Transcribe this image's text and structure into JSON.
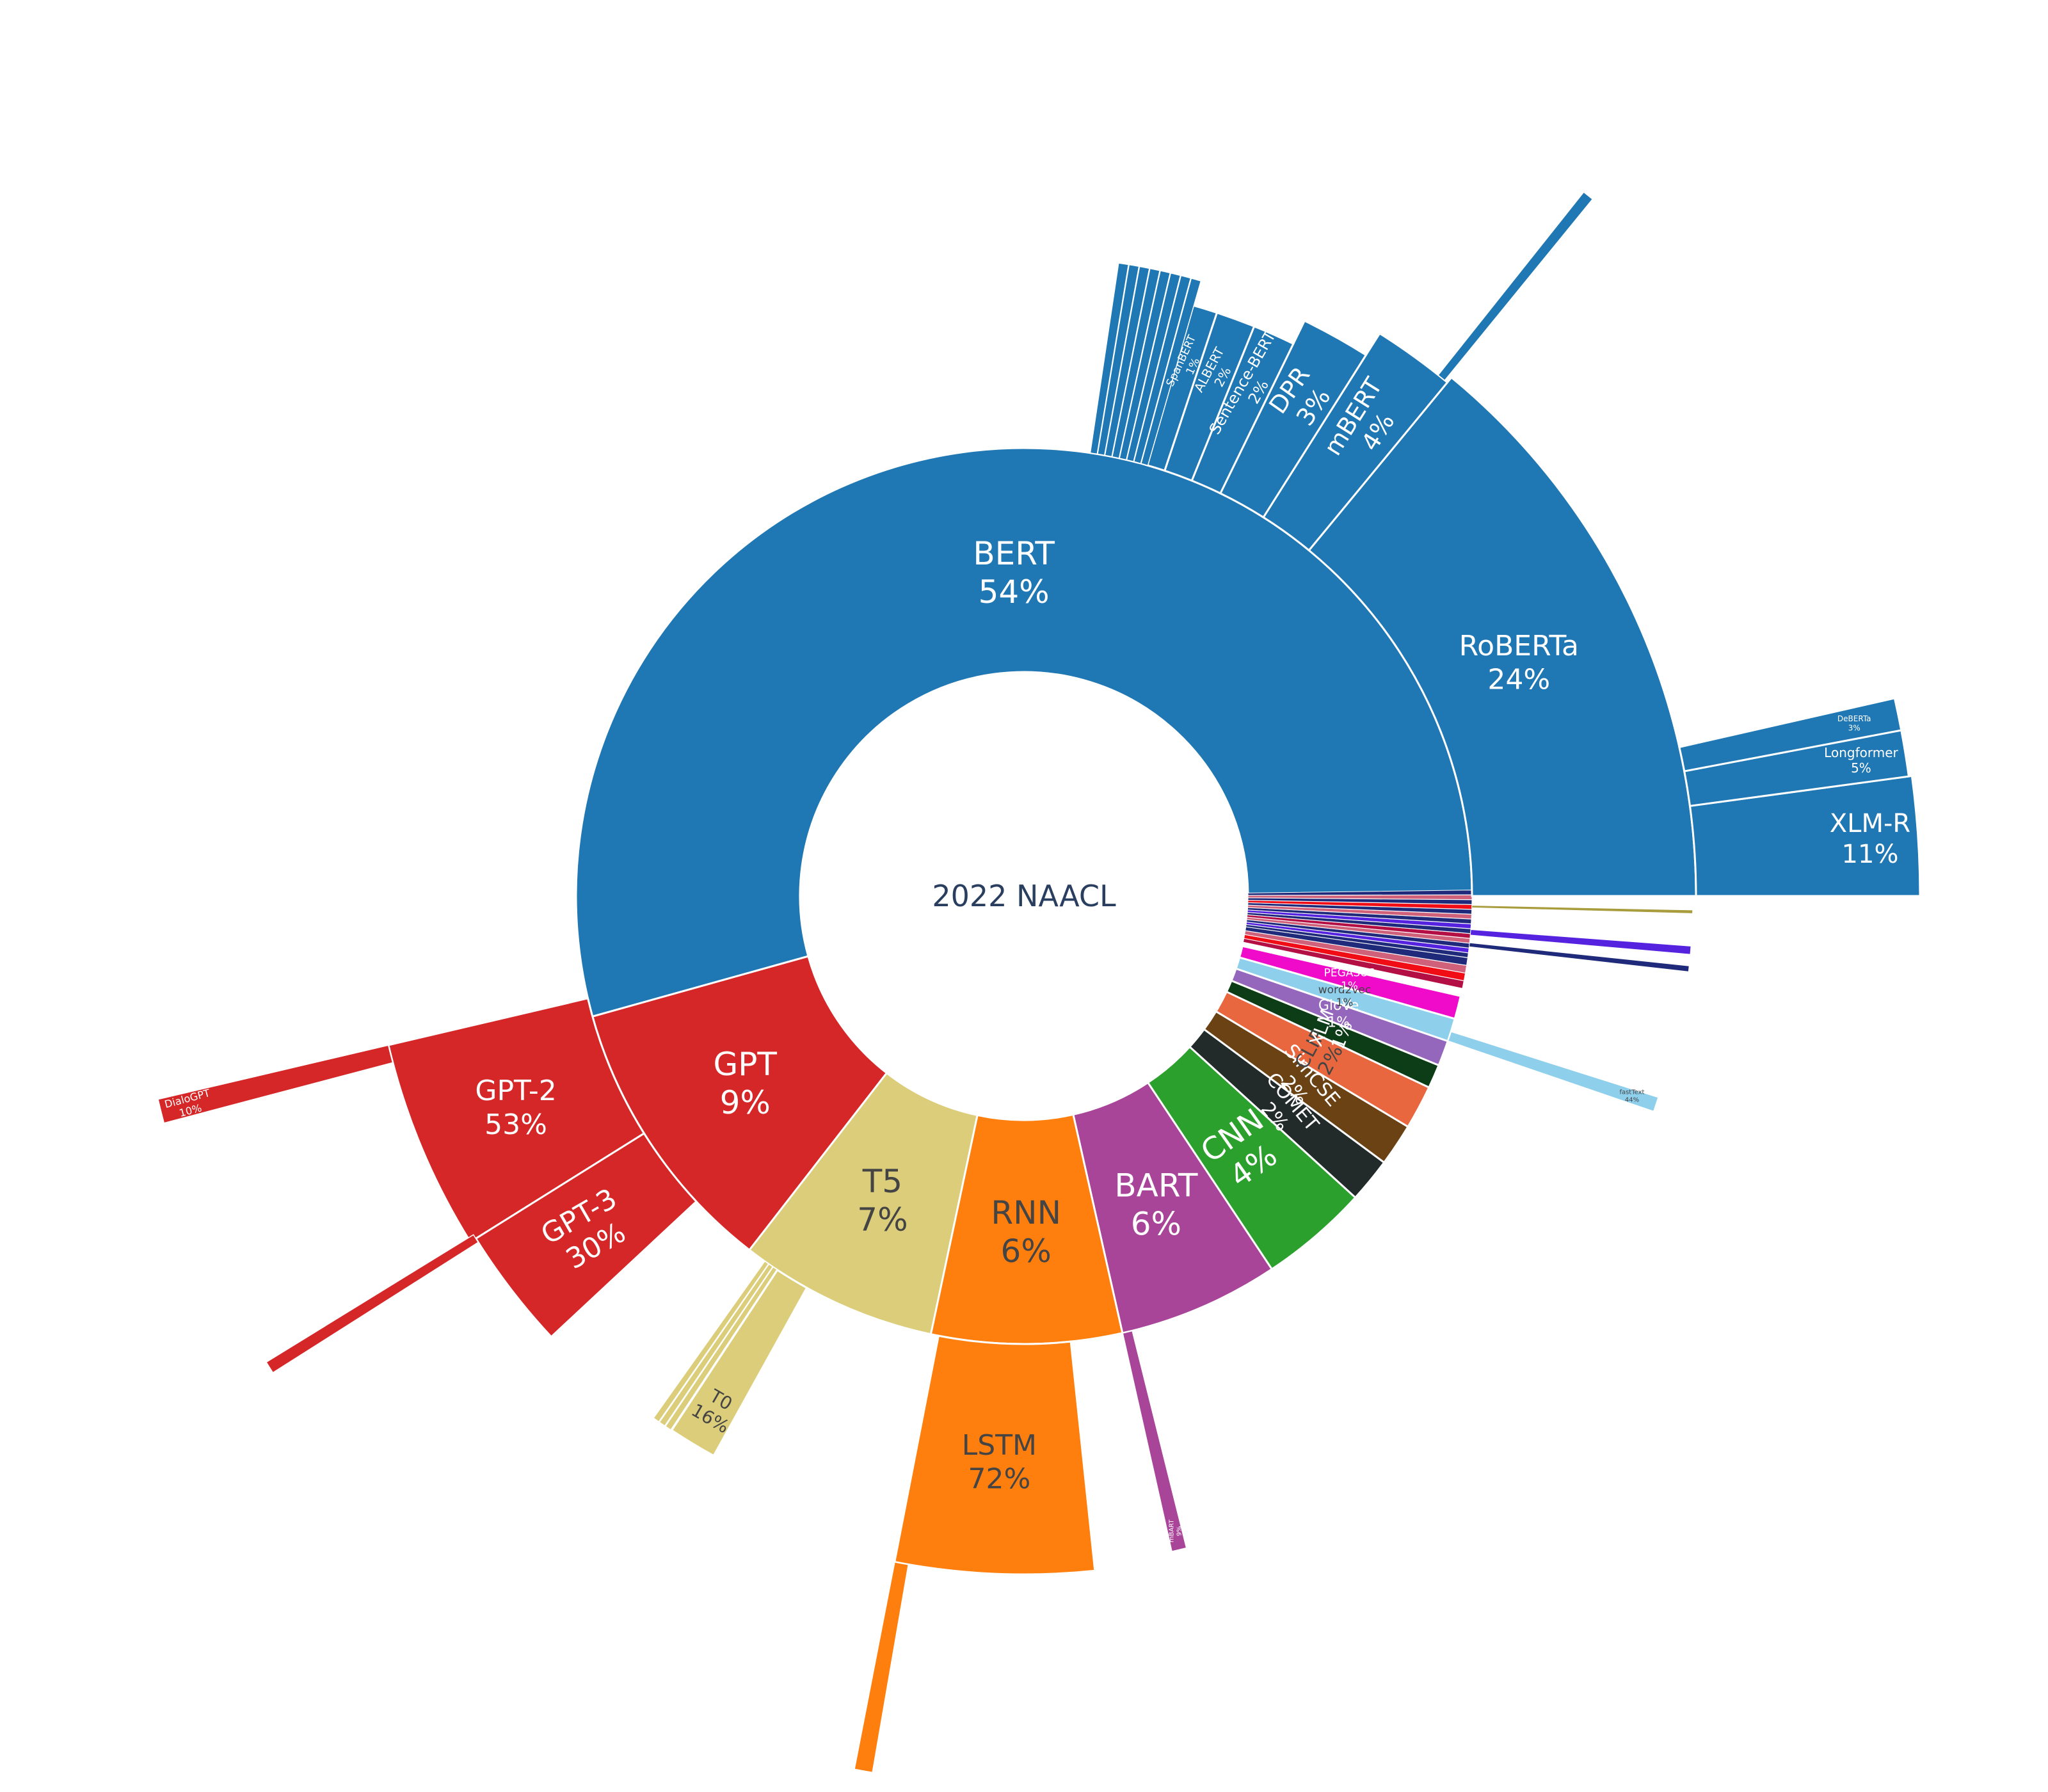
{
  "chart_data": {
    "type": "sunburst",
    "center_label": "2022 NAACL",
    "colors": {
      "BERT": "#1f77b4",
      "GPT": "#d62728",
      "T5": "#dbcd7a",
      "RNN": "#ff7f0e",
      "BART": "#a84599",
      "CNN": "#2ca02c",
      "COMET": "#222a2a",
      "SimCSE": "#6b4214",
      "CLIP": "#e8673f",
      "XLM": "#0d3d17",
      "GloVe": "#9467bd",
      "word2vec": "#8ecfec",
      "PEGASUS": "#f00ac9",
      "red_small": "#b30f45",
      "red_bright": "#f00d16",
      "pink_small": "#d0617a",
      "navy_small": "#1f2a7a",
      "violet_small": "#5522e0"
    },
    "inner_ring": [
      {
        "name": "BERT",
        "pct": 54,
        "label": "BERT",
        "value_label": "54%",
        "text_color": "#ffffff"
      },
      {
        "name": "GPT",
        "pct": 9,
        "label": "GPT",
        "value_label": "9%",
        "text_color": "#ffffff"
      },
      {
        "name": "T5",
        "pct": 7,
        "label": "T5",
        "value_label": "7%",
        "text_color": "#444444"
      },
      {
        "name": "RNN",
        "pct": 6,
        "label": "RNN",
        "value_label": "6%",
        "text_color": "#444444"
      },
      {
        "name": "BART",
        "pct": 6,
        "label": "BART",
        "value_label": "6%",
        "text_color": "#ffffff"
      },
      {
        "name": "CNN",
        "pct": 4,
        "label": "CNN",
        "value_label": "4%",
        "text_color": "#ffffff"
      },
      {
        "name": "COMET",
        "pct": 2,
        "label": "COMET",
        "value_label": "2%",
        "text_color": "#ffffff"
      },
      {
        "name": "SimCSE",
        "pct": 2,
        "label": "SimCSE",
        "value_label": "2%",
        "text_color": "#ffffff"
      },
      {
        "name": "CLIP",
        "pct": 2,
        "label": "CLIP",
        "value_label": "2%",
        "text_color": "#444444"
      },
      {
        "name": "XLM",
        "pct": 1,
        "label": "XLM",
        "value_label": "1%",
        "text_color": "#ffffff"
      },
      {
        "name": "GloVe",
        "pct": 1,
        "label": "GloVe",
        "value_label": "1%",
        "text_color": "#ffffff"
      },
      {
        "name": "word2vec",
        "pct": 1,
        "label": "word2vec",
        "value_label": "1%",
        "text_color": "#444444"
      },
      {
        "name": "PEGASUS",
        "pct": 1,
        "label": "PEGASUS",
        "value_label": "1%",
        "text_color": "#ffffff"
      }
    ],
    "children": {
      "BERT": [
        {
          "label": "RoBERTa",
          "value_label": "24%"
        },
        {
          "label": "mBERT",
          "value_label": "4%"
        },
        {
          "label": "DPR",
          "value_label": "3%"
        },
        {
          "label": "Sentence-BERT",
          "value_label": "2%"
        },
        {
          "label": "ALBERT",
          "value_label": "2%"
        },
        {
          "label": "SpanBERT",
          "value_label": "1%"
        }
      ],
      "RoBERTa": [
        {
          "label": "XLM-R",
          "value_label": "11%"
        },
        {
          "label": "Longformer",
          "value_label": "5%"
        },
        {
          "label": "DeBERTa",
          "value_label": "3%"
        }
      ],
      "GPT": [
        {
          "label": "GPT-2",
          "value_label": "53%"
        },
        {
          "label": "GPT-3",
          "value_label": "30%"
        }
      ],
      "GPT-2": [
        {
          "label": "DialoGPT",
          "value_label": "10%"
        }
      ],
      "T5": [
        {
          "label": "T0",
          "value_label": "16%"
        }
      ],
      "RNN": [
        {
          "label": "LSTM",
          "value_label": "72%"
        }
      ],
      "BART": [
        {
          "label": "mBART",
          "value_label": "9%"
        }
      ],
      "word2vec": [
        {
          "label": "fastText",
          "value_label": "44%"
        }
      ]
    }
  }
}
